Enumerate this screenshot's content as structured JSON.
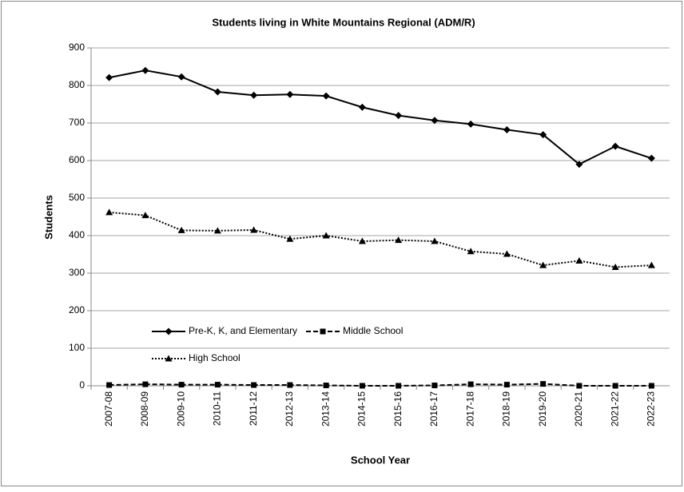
{
  "chart_data": {
    "type": "line",
    "title": "Students living in White Mountains Regional (ADM/R)",
    "xlabel": "School Year",
    "ylabel": "Students",
    "categories": [
      "2007-08",
      "2008-09",
      "2009-10",
      "2010-11",
      "2011-12",
      "2012-13",
      "2013-14",
      "2014-15",
      "2015-16",
      "2016-17",
      "2017-18",
      "2018-19",
      "2019-20",
      "2020-21",
      "2021-22",
      "2022-23"
    ],
    "series": [
      {
        "name": "Pre-K, K, and Elementary",
        "color": "#000000",
        "dash": "solid",
        "marker": "diamond",
        "values": [
          821,
          840,
          823,
          783,
          774,
          776,
          772,
          742,
          720,
          707,
          697,
          682,
          669,
          590,
          638,
          606
        ]
      },
      {
        "name": "Middle School",
        "color": "#000000",
        "dash": "dashed",
        "marker": "square",
        "values": [
          2,
          4,
          3,
          3,
          2,
          2,
          1,
          0,
          0,
          1,
          4,
          3,
          5,
          0,
          0,
          0
        ]
      },
      {
        "name": "High School",
        "color": "#000000",
        "dash": "dotted",
        "marker": "triangle",
        "values": [
          462,
          454,
          414,
          413,
          415,
          391,
          400,
          385,
          388,
          385,
          358,
          351,
          321,
          333,
          316,
          321
        ]
      }
    ],
    "ylim": [
      0,
      900
    ],
    "yticks": [
      0,
      100,
      200,
      300,
      400,
      500,
      600,
      700,
      800,
      900
    ],
    "grid": true,
    "legend": "lower left"
  }
}
